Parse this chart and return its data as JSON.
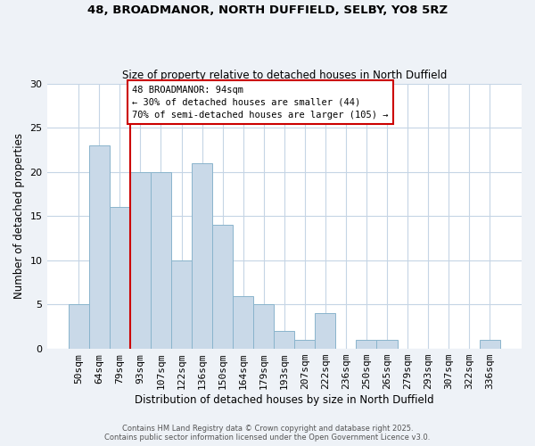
{
  "title1": "48, BROADMANOR, NORTH DUFFIELD, SELBY, YO8 5RZ",
  "title2": "Size of property relative to detached houses in North Duffield",
  "xlabel": "Distribution of detached houses by size in North Duffield",
  "ylabel": "Number of detached properties",
  "bin_labels": [
    "50sqm",
    "64sqm",
    "79sqm",
    "93sqm",
    "107sqm",
    "122sqm",
    "136sqm",
    "150sqm",
    "164sqm",
    "179sqm",
    "193sqm",
    "207sqm",
    "222sqm",
    "236sqm",
    "250sqm",
    "265sqm",
    "279sqm",
    "293sqm",
    "307sqm",
    "322sqm",
    "336sqm"
  ],
  "bar_values": [
    5,
    23,
    16,
    20,
    20,
    10,
    21,
    14,
    6,
    5,
    2,
    1,
    4,
    0,
    1,
    1,
    0,
    0,
    0,
    0,
    1
  ],
  "bar_color": "#c9d9e8",
  "bar_edgecolor": "#8ab4cc",
  "vline_color": "#cc0000",
  "annotation_text": "48 BROADMANOR: 94sqm\n← 30% of detached houses are smaller (44)\n70% of semi-detached houses are larger (105) →",
  "annotation_box_color": "#ffffff",
  "annotation_box_edgecolor": "#cc0000",
  "ylim": [
    0,
    30
  ],
  "yticks": [
    0,
    5,
    10,
    15,
    20,
    25,
    30
  ],
  "footnote": "Contains HM Land Registry data © Crown copyright and database right 2025.\nContains public sector information licensed under the Open Government Licence v3.0.",
  "bg_color": "#eef2f7",
  "plot_bg_color": "#ffffff",
  "grid_color": "#c5d5e5"
}
